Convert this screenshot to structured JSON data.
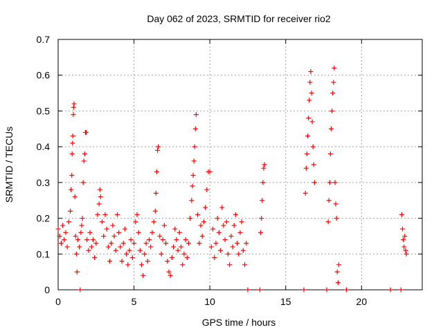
{
  "chart_data": {
    "type": "scatter",
    "title": "Day 062 of 2023, SRMTID for receiver rio2",
    "xlabel": "GPS time / hours",
    "ylabel": "SRMTID / TECUs",
    "xlim": [
      0,
      24
    ],
    "ylim": [
      0,
      0.7
    ],
    "xticks": [
      0,
      5,
      10,
      15,
      20
    ],
    "xtick_labels": [
      "0",
      "5",
      "10",
      "15",
      "20"
    ],
    "yticks": [
      0,
      0.1,
      0.2,
      0.3,
      0.4,
      0.5,
      0.6,
      0.7
    ],
    "ytick_labels": [
      "0",
      "0.1",
      "0.2",
      "0.3",
      "0.4",
      "0.5",
      "0.6",
      "0.7"
    ],
    "grid": true,
    "marker": "plus",
    "color": "#ff0000",
    "series": [
      {
        "name": "SRMTID",
        "points": [
          [
            0.0,
            0.17
          ],
          [
            0.1,
            0.15
          ],
          [
            0.2,
            0.13
          ],
          [
            0.3,
            0.18
          ],
          [
            0.4,
            0.14
          ],
          [
            0.5,
            0.16
          ],
          [
            0.6,
            0.12
          ],
          [
            0.7,
            0.19
          ],
          [
            0.8,
            0.22
          ],
          [
            0.85,
            0.28
          ],
          [
            0.9,
            0.32
          ],
          [
            0.92,
            0.38
          ],
          [
            0.95,
            0.41
          ],
          [
            0.97,
            0.43
          ],
          [
            1.0,
            0.49
          ],
          [
            1.02,
            0.51
          ],
          [
            1.05,
            0.52
          ],
          [
            1.1,
            0.26
          ],
          [
            1.15,
            0.15
          ],
          [
            1.2,
            0.1
          ],
          [
            1.25,
            0.05
          ],
          [
            1.3,
            0.14
          ],
          [
            1.4,
            0.12
          ],
          [
            1.45,
            0.0
          ],
          [
            1.5,
            0.16
          ],
          [
            1.55,
            0.18
          ],
          [
            1.6,
            0.2
          ],
          [
            1.65,
            0.3
          ],
          [
            1.7,
            0.36
          ],
          [
            1.75,
            0.38
          ],
          [
            1.8,
            0.44
          ],
          [
            1.85,
            0.44
          ],
          [
            1.9,
            0.14
          ],
          [
            2.0,
            0.11
          ],
          [
            2.1,
            0.16
          ],
          [
            2.2,
            0.12
          ],
          [
            2.3,
            0.14
          ],
          [
            2.4,
            0.09
          ],
          [
            2.5,
            0.13
          ],
          [
            2.6,
            0.21
          ],
          [
            2.7,
            0.24
          ],
          [
            2.75,
            0.28
          ],
          [
            2.8,
            0.26
          ],
          [
            2.9,
            0.19
          ],
          [
            3.0,
            0.15
          ],
          [
            3.1,
            0.21
          ],
          [
            3.2,
            0.17
          ],
          [
            3.3,
            0.12
          ],
          [
            3.4,
            0.08
          ],
          [
            3.5,
            0.13
          ],
          [
            3.6,
            0.18
          ],
          [
            3.7,
            0.15
          ],
          [
            3.8,
            0.11
          ],
          [
            3.9,
            0.21
          ],
          [
            4.0,
            0.16
          ],
          [
            4.1,
            0.12
          ],
          [
            4.2,
            0.08
          ],
          [
            4.3,
            0.13
          ],
          [
            4.4,
            0.17
          ],
          [
            4.5,
            0.1
          ],
          [
            4.6,
            0.07
          ],
          [
            4.7,
            0.11
          ],
          [
            4.8,
            0.14
          ],
          [
            4.9,
            0.09
          ],
          [
            5.0,
            0.13
          ],
          [
            5.1,
            0.19
          ],
          [
            5.2,
            0.21
          ],
          [
            5.3,
            0.16
          ],
          [
            5.4,
            0.11
          ],
          [
            5.5,
            0.07
          ],
          [
            5.6,
            0.04
          ],
          [
            5.7,
            0.1
          ],
          [
            5.8,
            0.13
          ],
          [
            5.9,
            0.08
          ],
          [
            6.0,
            0.14
          ],
          [
            6.1,
            0.12
          ],
          [
            6.2,
            0.16
          ],
          [
            6.3,
            0.19
          ],
          [
            6.4,
            0.22
          ],
          [
            6.45,
            0.27
          ],
          [
            6.5,
            0.33
          ],
          [
            6.55,
            0.39
          ],
          [
            6.6,
            0.4
          ],
          [
            6.7,
            0.15
          ],
          [
            6.8,
            0.1
          ],
          [
            6.9,
            0.14
          ],
          [
            7.0,
            0.18
          ],
          [
            7.1,
            0.13
          ],
          [
            7.2,
            0.08
          ],
          [
            7.3,
            0.05
          ],
          [
            7.4,
            0.04
          ],
          [
            7.5,
            0.09
          ],
          [
            7.6,
            0.12
          ],
          [
            7.7,
            0.17
          ],
          [
            7.8,
            0.14
          ],
          [
            7.9,
            0.11
          ],
          [
            8.0,
            0.16
          ],
          [
            8.1,
            0.12
          ],
          [
            8.2,
            0.07
          ],
          [
            8.3,
            0.1
          ],
          [
            8.4,
            0.14
          ],
          [
            8.5,
            0.09
          ],
          [
            8.6,
            0.13
          ],
          [
            8.7,
            0.2
          ],
          [
            8.8,
            0.25
          ],
          [
            8.85,
            0.29
          ],
          [
            8.9,
            0.32
          ],
          [
            8.95,
            0.36
          ],
          [
            9.0,
            0.4
          ],
          [
            9.05,
            0.45
          ],
          [
            9.1,
            0.49
          ],
          [
            9.2,
            0.21
          ],
          [
            9.3,
            0.13
          ],
          [
            9.4,
            0.18
          ],
          [
            9.5,
            0.15
          ],
          [
            9.6,
            0.19
          ],
          [
            9.7,
            0.23
          ],
          [
            9.8,
            0.28
          ],
          [
            9.9,
            0.33
          ],
          [
            10.0,
            0.33
          ],
          [
            10.1,
            0.12
          ],
          [
            10.2,
            0.17
          ],
          [
            10.3,
            0.09
          ],
          [
            10.4,
            0.13
          ],
          [
            10.5,
            0.2
          ],
          [
            10.6,
            0.16
          ],
          [
            10.7,
            0.11
          ],
          [
            10.8,
            0.23
          ],
          [
            10.9,
            0.18
          ],
          [
            11.0,
            0.14
          ],
          [
            11.1,
            0.19
          ],
          [
            11.2,
            0.1
          ],
          [
            11.3,
            0.07
          ],
          [
            11.4,
            0.15
          ],
          [
            11.5,
            0.12
          ],
          [
            11.6,
            0.18
          ],
          [
            11.7,
            0.21
          ],
          [
            11.8,
            0.13
          ],
          [
            11.9,
            0.1
          ],
          [
            12.0,
            0.16
          ],
          [
            12.1,
            0.19
          ],
          [
            12.2,
            0.11
          ],
          [
            12.3,
            0.07
          ],
          [
            12.4,
            0.13
          ],
          [
            12.5,
            0.0
          ],
          [
            13.3,
            0.0
          ],
          [
            13.35,
            0.16
          ],
          [
            13.4,
            0.2
          ],
          [
            13.45,
            0.25
          ],
          [
            13.5,
            0.3
          ],
          [
            13.55,
            0.34
          ],
          [
            13.6,
            0.35
          ],
          [
            16.2,
            0.0
          ],
          [
            16.3,
            0.27
          ],
          [
            16.35,
            0.34
          ],
          [
            16.4,
            0.38
          ],
          [
            16.45,
            0.43
          ],
          [
            16.5,
            0.48
          ],
          [
            16.55,
            0.53
          ],
          [
            16.6,
            0.58
          ],
          [
            16.65,
            0.61
          ],
          [
            16.7,
            0.55
          ],
          [
            16.75,
            0.47
          ],
          [
            16.8,
            0.4
          ],
          [
            16.85,
            0.35
          ],
          [
            16.9,
            0.3
          ],
          [
            17.7,
            0.0
          ],
          [
            17.8,
            0.19
          ],
          [
            17.85,
            0.25
          ],
          [
            17.9,
            0.3
          ],
          [
            17.95,
            0.38
          ],
          [
            18.0,
            0.45
          ],
          [
            18.05,
            0.5
          ],
          [
            18.1,
            0.55
          ],
          [
            18.15,
            0.58
          ],
          [
            18.2,
            0.62
          ],
          [
            18.25,
            0.3
          ],
          [
            18.3,
            0.24
          ],
          [
            18.35,
            0.2
          ],
          [
            18.4,
            0.05
          ],
          [
            18.45,
            0.02
          ],
          [
            18.5,
            0.07
          ],
          [
            19.0,
            0.0
          ],
          [
            21.9,
            0.0
          ],
          [
            22.6,
            0.0
          ],
          [
            22.65,
            0.21
          ],
          [
            22.7,
            0.17
          ],
          [
            22.75,
            0.14
          ],
          [
            22.8,
            0.12
          ],
          [
            22.85,
            0.15
          ],
          [
            22.9,
            0.11
          ],
          [
            22.95,
            0.1
          ]
        ]
      }
    ]
  }
}
